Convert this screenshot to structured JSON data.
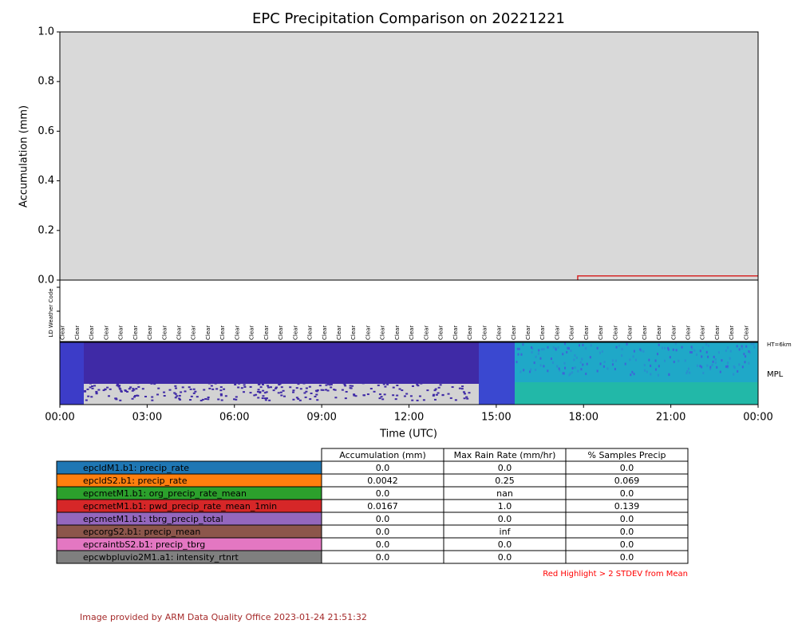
{
  "chart_data": {
    "type": "line",
    "title": "EPC Precipitation Comparison on 20221221",
    "y_label": "Accumulation (mm)",
    "x_label": "Time (UTC)",
    "xlim": [
      0,
      24
    ],
    "xticks": [
      {
        "value": 0,
        "label": "00:00"
      },
      {
        "value": 3,
        "label": "03:00"
      },
      {
        "value": 6,
        "label": "06:00"
      },
      {
        "value": 9,
        "label": "09:00"
      },
      {
        "value": 12,
        "label": "12:00"
      },
      {
        "value": 15,
        "label": "15:00"
      },
      {
        "value": 18,
        "label": "18:00"
      },
      {
        "value": 21,
        "label": "21:00"
      },
      {
        "value": 24,
        "label": "00:00"
      }
    ],
    "ylim": [
      0,
      1
    ],
    "yticks": [
      {
        "value": 0,
        "label": "0.0"
      },
      {
        "value": 0.2,
        "label": "0.2"
      },
      {
        "value": 0.4,
        "label": "0.4"
      },
      {
        "value": 0.6,
        "label": "0.6"
      },
      {
        "value": 0.8,
        "label": "0.8"
      },
      {
        "value": 1,
        "label": "1.0"
      }
    ],
    "background": "#d9d9d9",
    "series": [
      {
        "color": "#d62728",
        "x": [
          17.8,
          17.8,
          24
        ],
        "values": [
          0,
          0.0167,
          0.0167
        ]
      }
    ],
    "weather_strip": {
      "label": "LD Weather Code",
      "codes": [
        "Clear",
        "Clear",
        "Clear",
        "Clear",
        "Clear",
        "Clear",
        "Clear",
        "Clear",
        "Clear",
        "Clear",
        "Clear",
        "Clear",
        "Clear",
        "Clear",
        "Clear",
        "Clear",
        "Clear",
        "Clear",
        "Clear",
        "Clear",
        "Clear",
        "Clear",
        "Clear",
        "Clear",
        "Clear",
        "Clear",
        "Clear",
        "Clear",
        "Clear",
        "Clear",
        "Clear",
        "Clear",
        "Clear",
        "Clear",
        "Clear",
        "Clear",
        "Clear",
        "Clear",
        "Clear",
        "Clear",
        "Clear",
        "Clear",
        "Clear",
        "Clear",
        "Clear",
        "Clear",
        "Clear",
        "Clear"
      ]
    },
    "mpl_strip": {
      "label": "MPL",
      "height_label": "HT=6km"
    }
  },
  "table": {
    "columns": [
      "Accumulation (mm)",
      "Max Rain Rate (mm/hr)",
      "% Samples Precip"
    ],
    "rows": [
      {
        "name": "epcldM1.b1: precip_rate",
        "color": "#1f77b4",
        "cells": [
          "0.0",
          "0.0",
          "0.0"
        ]
      },
      {
        "name": "epcldS2.b1: precip_rate",
        "color": "#ff7f0e",
        "cells": [
          "0.0042",
          "0.25",
          "0.069"
        ]
      },
      {
        "name": "epcmetM1.b1: org_precip_rate_mean",
        "color": "#2ca02c",
        "cells": [
          "0.0",
          "nan",
          "0.0"
        ]
      },
      {
        "name": "epcmetM1.b1: pwd_precip_rate_mean_1min",
        "color": "#d62728",
        "cells": [
          "0.0167",
          "1.0",
          "0.139"
        ]
      },
      {
        "name": "epcmetM1.b1: tbrg_precip_total",
        "color": "#9467bd",
        "cells": [
          "0.0",
          "0.0",
          "0.0"
        ]
      },
      {
        "name": "epcorgS2.b1: precip_mean",
        "color": "#8c564b",
        "cells": [
          "0.0",
          "inf",
          "0.0"
        ]
      },
      {
        "name": "epcraintbS2.b1: precip_tbrg",
        "color": "#e377c2",
        "cells": [
          "0.0",
          "0.0",
          "0.0"
        ]
      },
      {
        "name": "epcwbpluvio2M1.a1: intensity_rtnrt",
        "color": "#7f7f7f",
        "cells": [
          "0.0",
          "0.0",
          "0.0"
        ]
      }
    ],
    "note": "Red Highlight > 2 STDEV from Mean"
  },
  "footer": "Image provided by ARM Data Quality Office 2023-01-24 21:51:32"
}
